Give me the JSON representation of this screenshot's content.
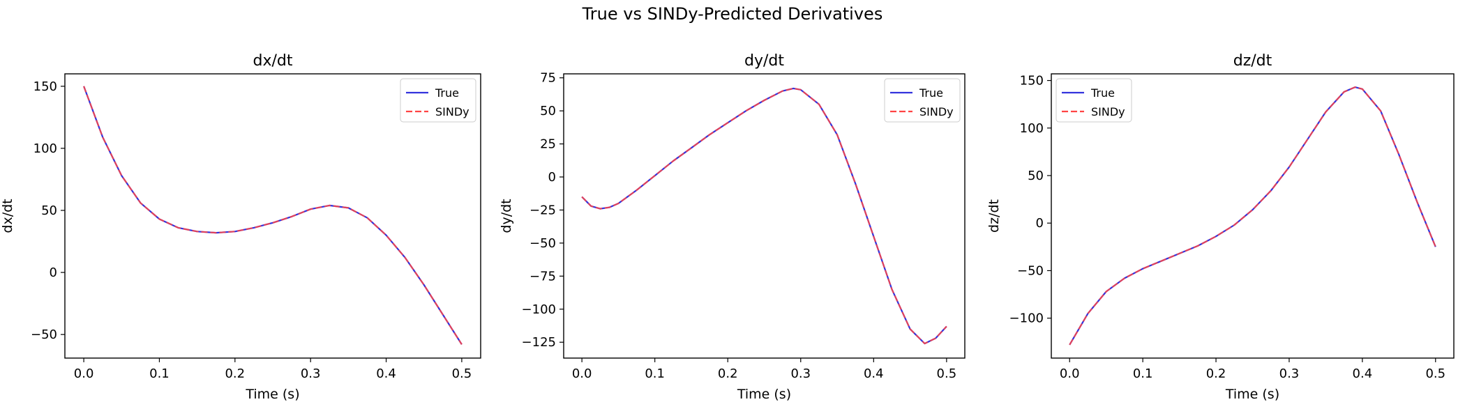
{
  "figure": {
    "title": "True vs SINDy-Predicted Derivatives"
  },
  "chart_data": [
    {
      "type": "line",
      "title": "dx/dt",
      "xlabel": "Time (s)",
      "ylabel": "dx/dt",
      "xlim": [
        -0.025,
        0.525
      ],
      "ylim": [
        -69,
        160
      ],
      "xticks": [
        0.0,
        0.1,
        0.2,
        0.3,
        0.4,
        0.5
      ],
      "xtick_labels": [
        "0.0",
        "0.1",
        "0.2",
        "0.3",
        "0.4",
        "0.5"
      ],
      "yticks": [
        -50,
        0,
        50,
        100,
        150
      ],
      "ytick_labels": [
        "−50",
        "0",
        "50",
        "100",
        "150"
      ],
      "legend": {
        "placement": "top-right",
        "entries": [
          "True",
          "SINDy"
        ]
      },
      "grid": false,
      "x": [
        0.0,
        0.025,
        0.05,
        0.075,
        0.1,
        0.125,
        0.15,
        0.175,
        0.2,
        0.225,
        0.25,
        0.275,
        0.3,
        0.325,
        0.35,
        0.375,
        0.4,
        0.425,
        0.45,
        0.475,
        0.5
      ],
      "series": [
        {
          "name": "True",
          "color": "#3333dd",
          "style": "solid",
          "values": [
            150,
            109,
            78,
            56,
            43,
            36,
            33,
            32,
            33,
            36,
            40,
            45,
            51,
            54,
            52,
            44,
            30,
            12,
            -10,
            -34,
            -58
          ]
        },
        {
          "name": "SINDy",
          "color": "#ff4444",
          "style": "dashed",
          "values": [
            150,
            109,
            78,
            56,
            43,
            36,
            33,
            32,
            33,
            36,
            40,
            45,
            51,
            54,
            52,
            44,
            30,
            12,
            -10,
            -34,
            -58
          ]
        }
      ]
    },
    {
      "type": "line",
      "title": "dy/dt",
      "xlabel": "Time (s)",
      "ylabel": "dy/dt",
      "xlim": [
        -0.025,
        0.525
      ],
      "ylim": [
        -137,
        78
      ],
      "xticks": [
        0.0,
        0.1,
        0.2,
        0.3,
        0.4,
        0.5
      ],
      "xtick_labels": [
        "0.0",
        "0.1",
        "0.2",
        "0.3",
        "0.4",
        "0.5"
      ],
      "yticks": [
        -125,
        -100,
        -75,
        -50,
        -25,
        0,
        25,
        50,
        75
      ],
      "ytick_labels": [
        "−125",
        "−100",
        "−75",
        "−50",
        "−25",
        "0",
        "25",
        "50",
        "75"
      ],
      "legend": {
        "placement": "top-right",
        "entries": [
          "True",
          "SINDy"
        ]
      },
      "grid": false,
      "x": [
        0.0,
        0.0125,
        0.025,
        0.0375,
        0.05,
        0.075,
        0.1,
        0.125,
        0.15,
        0.175,
        0.2,
        0.225,
        0.25,
        0.275,
        0.29,
        0.3,
        0.325,
        0.35,
        0.375,
        0.4,
        0.425,
        0.45,
        0.47,
        0.485,
        0.5
      ],
      "series": [
        {
          "name": "True",
          "color": "#3333dd",
          "style": "solid",
          "values": [
            -15,
            -22,
            -24,
            -23,
            -20,
            -10,
            1,
            12,
            22,
            32,
            41,
            50,
            58,
            65,
            67,
            66,
            55,
            32,
            -5,
            -45,
            -85,
            -115,
            -126,
            -122,
            -113
          ]
        },
        {
          "name": "SINDy",
          "color": "#ff4444",
          "style": "dashed",
          "values": [
            -15,
            -22,
            -24,
            -23,
            -20,
            -10,
            1,
            12,
            22,
            32,
            41,
            50,
            58,
            65,
            67,
            66,
            55,
            32,
            -5,
            -45,
            -85,
            -115,
            -126,
            -122,
            -113
          ]
        }
      ]
    },
    {
      "type": "line",
      "title": "dz/dt",
      "xlabel": "Time (s)",
      "ylabel": "dz/dt",
      "xlim": [
        -0.025,
        0.525
      ],
      "ylim": [
        -142,
        157
      ],
      "xticks": [
        0.0,
        0.1,
        0.2,
        0.3,
        0.4,
        0.5
      ],
      "xtick_labels": [
        "0.0",
        "0.1",
        "0.2",
        "0.3",
        "0.4",
        "0.5"
      ],
      "yticks": [
        -100,
        -50,
        0,
        50,
        100,
        150
      ],
      "ytick_labels": [
        "−100",
        "−50",
        "0",
        "50",
        "100",
        "150"
      ],
      "legend": {
        "placement": "top-left",
        "entries": [
          "True",
          "SINDy"
        ]
      },
      "grid": false,
      "x": [
        0.0,
        0.025,
        0.05,
        0.075,
        0.1,
        0.125,
        0.15,
        0.175,
        0.2,
        0.225,
        0.25,
        0.275,
        0.3,
        0.325,
        0.35,
        0.375,
        0.39,
        0.4,
        0.425,
        0.45,
        0.475,
        0.5
      ],
      "series": [
        {
          "name": "True",
          "color": "#3333dd",
          "style": "solid",
          "values": [
            -128,
            -95,
            -72,
            -58,
            -48,
            -40,
            -32,
            -24,
            -14,
            -2,
            14,
            34,
            59,
            88,
            117,
            138,
            143,
            141,
            118,
            72,
            22,
            -25
          ]
        },
        {
          "name": "SINDy",
          "color": "#ff4444",
          "style": "dashed",
          "values": [
            -128,
            -95,
            -72,
            -58,
            -48,
            -40,
            -32,
            -24,
            -14,
            -2,
            14,
            34,
            59,
            88,
            117,
            138,
            143,
            141,
            118,
            72,
            22,
            -25
          ]
        }
      ]
    }
  ]
}
